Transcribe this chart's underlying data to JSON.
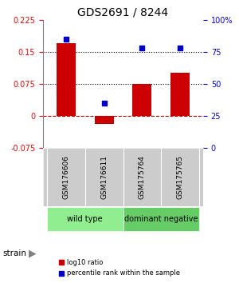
{
  "title": "GDS2691 / 8244",
  "samples": [
    "GSM176606",
    "GSM176611",
    "GSM175764",
    "GSM175765"
  ],
  "log10_ratio": [
    0.17,
    -0.02,
    0.075,
    0.1
  ],
  "percentile_rank": [
    85,
    35,
    78,
    78
  ],
  "groups": [
    {
      "label": "wild type",
      "samples": [
        0,
        1
      ],
      "color": "#90EE90"
    },
    {
      "label": "dominant negative",
      "samples": [
        2,
        3
      ],
      "color": "#66CC66"
    }
  ],
  "bar_color": "#CC0000",
  "dot_color": "#0000CC",
  "ylim_left": [
    -0.075,
    0.225
  ],
  "ylim_right": [
    0,
    100
  ],
  "yticks_left": [
    -0.075,
    0,
    0.075,
    0.15,
    0.225
  ],
  "yticks_right": [
    0,
    25,
    50,
    75,
    100
  ],
  "ytick_labels_left": [
    "-0.075",
    "0",
    "0.075",
    "0.15",
    "0.225"
  ],
  "ytick_labels_right": [
    "0",
    "25",
    "50",
    "75",
    "100%"
  ],
  "hlines": [
    0.075,
    0.15
  ],
  "zero_line": 0,
  "strain_label": "strain",
  "legend_bar": "log10 ratio",
  "legend_dot": "percentile rank within the sample",
  "bg_color": "#ffffff",
  "plot_bg_color": "#ffffff",
  "label_area_color": "#cccccc",
  "bar_width": 0.5
}
